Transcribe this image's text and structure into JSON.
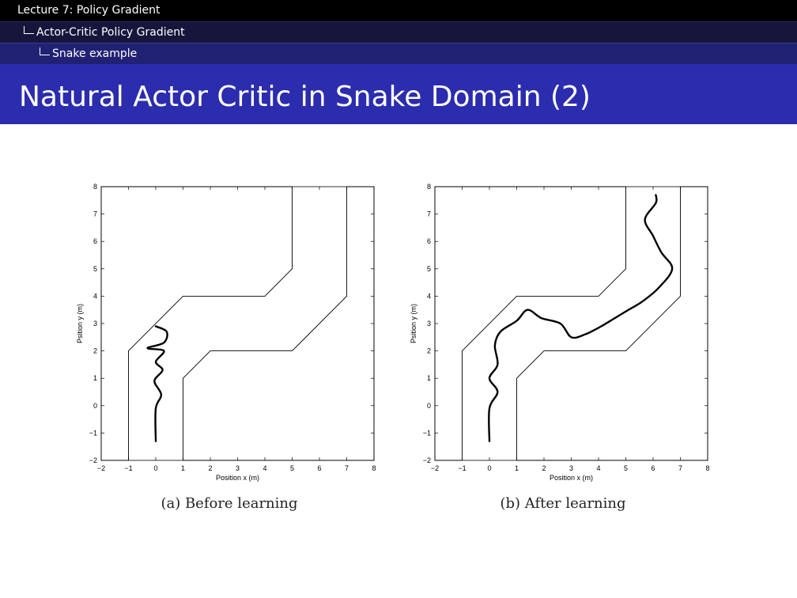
{
  "header": {
    "lecture": "Lecture 7: Policy Gradient",
    "section": "Actor-Critic Policy Gradient",
    "subsection": "Snake example"
  },
  "slide": {
    "title": "Natural Actor Critic in Snake Domain (2)"
  },
  "colors": {
    "header_black": "#000000",
    "header_dark": "#16163d",
    "header_mid": "#212173",
    "title_bar": "#2c2cae"
  },
  "chart_data": [
    {
      "type": "line",
      "caption": "(a) Before learning",
      "xlabel": "Position x (m)",
      "ylabel": "Psition y (m)",
      "xlim": [
        -2,
        8
      ],
      "ylim": [
        -2,
        8
      ],
      "xticks": [
        -2,
        -1,
        0,
        1,
        2,
        3,
        4,
        5,
        6,
        7,
        8
      ],
      "yticks": [
        -2,
        -1,
        0,
        1,
        2,
        3,
        4,
        5,
        6,
        7,
        8
      ],
      "track_outer": [
        [
          -2,
          -2
        ],
        [
          -2,
          8
        ],
        [
          5,
          8
        ],
        [
          5,
          5
        ],
        [
          4,
          4
        ],
        [
          1,
          4
        ],
        [
          -1,
          2
        ],
        [
          -1,
          -2
        ],
        [
          -2,
          -2
        ]
      ],
      "track_inner": [
        [
          1,
          -2
        ],
        [
          1,
          1
        ],
        [
          2,
          2
        ],
        [
          5,
          2
        ],
        [
          7,
          4
        ],
        [
          7,
          8
        ],
        [
          8,
          8
        ],
        [
          8,
          -2
        ],
        [
          1,
          -2
        ]
      ],
      "trajectory": [
        [
          0,
          -1.3
        ],
        [
          0,
          -0.1
        ],
        [
          0.2,
          0.4
        ],
        [
          -0.05,
          0.9
        ],
        [
          0.25,
          1.3
        ],
        [
          0,
          1.6
        ],
        [
          0.3,
          2.0
        ],
        [
          -0.3,
          2.1
        ],
        [
          0.3,
          2.3
        ],
        [
          0.4,
          2.7
        ],
        [
          0,
          2.9
        ]
      ]
    },
    {
      "type": "line",
      "caption": "(b) After learning",
      "xlabel": "Position x (m)",
      "ylabel": "Psition y (m)",
      "xlim": [
        -2,
        8
      ],
      "ylim": [
        -2,
        8
      ],
      "xticks": [
        -2,
        -1,
        0,
        1,
        2,
        3,
        4,
        5,
        6,
        7,
        8
      ],
      "yticks": [
        -2,
        -1,
        0,
        1,
        2,
        3,
        4,
        5,
        6,
        7,
        8
      ],
      "track_outer": [
        [
          -2,
          -2
        ],
        [
          -2,
          8
        ],
        [
          5,
          8
        ],
        [
          5,
          5
        ],
        [
          4,
          4
        ],
        [
          1,
          4
        ],
        [
          -1,
          2
        ],
        [
          -1,
          -2
        ],
        [
          -2,
          -2
        ]
      ],
      "track_inner": [
        [
          1,
          -2
        ],
        [
          1,
          1
        ],
        [
          2,
          2
        ],
        [
          5,
          2
        ],
        [
          7,
          4
        ],
        [
          7,
          8
        ],
        [
          8,
          8
        ],
        [
          8,
          -2
        ],
        [
          1,
          -2
        ]
      ],
      "trajectory": [
        [
          0,
          -1.3
        ],
        [
          0,
          -0.1
        ],
        [
          0.3,
          0.5
        ],
        [
          0,
          1.0
        ],
        [
          0.3,
          1.5
        ],
        [
          0.2,
          2.2
        ],
        [
          0.4,
          2.7
        ],
        [
          1.0,
          3.1
        ],
        [
          1.4,
          3.5
        ],
        [
          1.9,
          3.2
        ],
        [
          2.6,
          3.0
        ],
        [
          3.0,
          2.5
        ],
        [
          3.5,
          2.6
        ],
        [
          4.1,
          2.9
        ],
        [
          4.6,
          3.2
        ],
        [
          5.1,
          3.5
        ],
        [
          5.6,
          3.8
        ],
        [
          6.2,
          4.3
        ],
        [
          6.7,
          5.0
        ],
        [
          6.3,
          5.6
        ],
        [
          6.0,
          6.2
        ],
        [
          5.7,
          6.8
        ],
        [
          6.1,
          7.4
        ],
        [
          6.1,
          7.7
        ]
      ]
    }
  ]
}
